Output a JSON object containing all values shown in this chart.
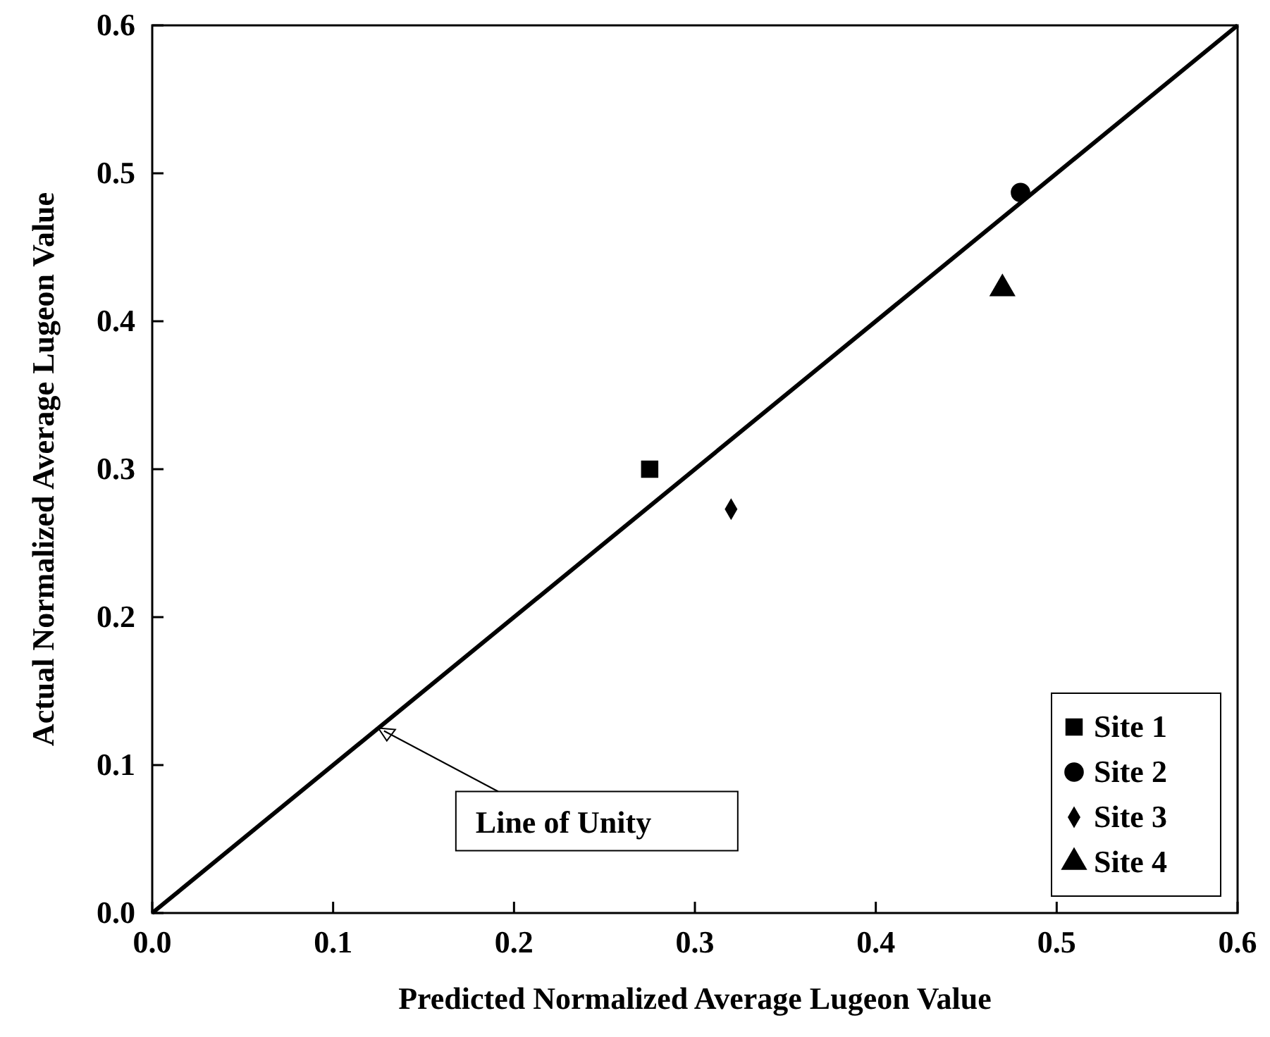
{
  "chart_data": {
    "type": "scatter",
    "xlabel": "Predicted Normalized Average Lugeon Value",
    "ylabel": "Actual Normalized Average Lugeon Value",
    "xlim": [
      0,
      0.6
    ],
    "ylim": [
      0,
      0.6
    ],
    "xticks": [
      {
        "value": 0,
        "label": "0.0"
      },
      0.1,
      0.2,
      0.3,
      0.4,
      0.5,
      0.6
    ],
    "yticks": [
      {
        "value": 0,
        "label": "0.0"
      },
      0.1,
      0.2,
      0.3,
      0.4,
      0.5,
      0.6
    ],
    "grid": false,
    "legend": "bottom right",
    "series": [
      {
        "type": "line",
        "x": [
          0,
          0.6
        ],
        "values": [
          0,
          0.6
        ],
        "color": "#000000",
        "line_style": "solid"
      },
      {
        "name": "Site 1",
        "x": [
          0.275
        ],
        "values": [
          0.3
        ],
        "color": "#000000",
        "marker": "square"
      },
      {
        "name": "Site 2",
        "x": [
          0.48
        ],
        "values": [
          0.487
        ],
        "color": "#000000",
        "marker": "circle"
      },
      {
        "name": "Site 3",
        "x": [
          0.32
        ],
        "values": [
          0.273
        ],
        "color": "#000000",
        "marker": "diamond"
      },
      {
        "name": "Site 4",
        "x": [
          0.47
        ],
        "values": [
          0.422
        ],
        "color": "#000000",
        "marker": "triangle"
      }
    ],
    "annotations": [
      {
        "text": "Line of Unity",
        "x": 0.125,
        "y": 0.125
      }
    ]
  }
}
